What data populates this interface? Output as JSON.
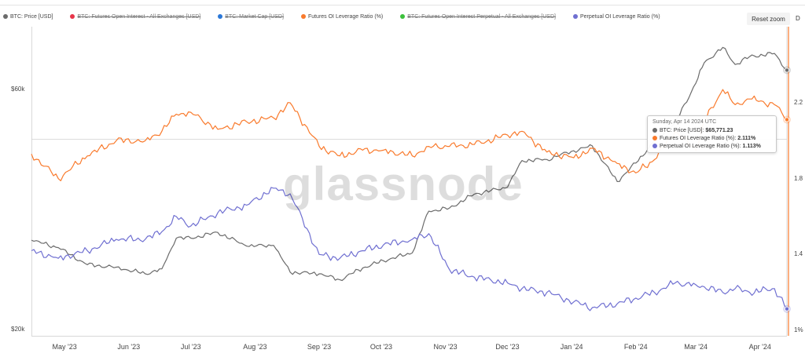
{
  "legend": [
    {
      "label": "BTC: Price [USD]",
      "color": "#6b6b6b",
      "hidden": false
    },
    {
      "label": "BTC: Futures Open Interest - All Exchanges [USD]",
      "color": "#e8354a",
      "hidden": true
    },
    {
      "label": "BTC: Market Cap [USD]",
      "color": "#2b78d8",
      "hidden": true
    },
    {
      "label": "Futures OI Leverage Ratio (%)",
      "color": "#f97a2c",
      "hidden": false
    },
    {
      "label": "BTC: Futures Open Interest Perpetual - All Exchanges [USD]",
      "color": "#3cc13c",
      "hidden": true
    },
    {
      "label": "Perpetual OI Leverage Ratio (%)",
      "color": "#6f6fd1",
      "hidden": false
    }
  ],
  "toolbar": {
    "reset_zoom_label": "Reset zoom",
    "cut_label": "D"
  },
  "watermark": "glassnode",
  "tooltip": {
    "date": "Sunday, Apr 14 2024 UTC",
    "rows": [
      {
        "label": "BTC: Price [USD]:",
        "value": "$65,771.23",
        "color": "#6b6b6b"
      },
      {
        "label": "Futures OI Leverage Ratio (%):",
        "value": "2.111%",
        "color": "#f97a2c"
      },
      {
        "label": "Perpetual OI Leverage Ratio (%):",
        "value": "1.113%",
        "color": "#6f6fd1"
      }
    ]
  },
  "chart_data": {
    "type": "line",
    "x_start": "2023-04-15",
    "x_end": "2024-04-14",
    "x_ticks": [
      "May '23",
      "Jun '23",
      "Jul '23",
      "Aug '23",
      "Sep '23",
      "Oct '23",
      "Nov '23",
      "Dec '23",
      "Jan '24",
      "Feb '24",
      "Mar '24",
      "Apr '24"
    ],
    "y_left": {
      "ticks": [
        "$20k",
        "$60k"
      ],
      "tick_values": [
        20000,
        60000
      ],
      "scale": "log",
      "range": [
        20000,
        74000
      ]
    },
    "y_right": {
      "ticks": [
        "1%",
        "1.4",
        "1.8",
        "2.2"
      ],
      "tick_values": [
        1.0,
        1.4,
        1.8,
        2.2
      ],
      "range": [
        1.0,
        2.3
      ]
    },
    "crosshair_date": "2024-04-14",
    "series": [
      {
        "name": "BTC: Price [USD]",
        "axis": "left",
        "color": "#6b6b6b",
        "x": [
          "2023-04-15",
          "2023-04-28",
          "2023-05-12",
          "2023-05-26",
          "2023-06-09",
          "2023-06-17",
          "2023-06-24",
          "2023-07-01",
          "2023-07-14",
          "2023-07-28",
          "2023-08-10",
          "2023-08-18",
          "2023-09-01",
          "2023-09-11",
          "2023-09-22",
          "2023-10-02",
          "2023-10-16",
          "2023-10-24",
          "2023-11-03",
          "2023-11-15",
          "2023-12-01",
          "2023-12-08",
          "2023-12-20",
          "2024-01-02",
          "2024-01-11",
          "2024-01-23",
          "2024-02-01",
          "2024-02-10",
          "2024-02-20",
          "2024-03-01",
          "2024-03-05",
          "2024-03-14",
          "2024-03-20",
          "2024-03-27",
          "2024-04-08",
          "2024-04-14"
        ],
        "y": [
          30200,
          29200,
          27000,
          26700,
          25900,
          26500,
          30500,
          30500,
          31300,
          29400,
          29500,
          26100,
          25900,
          25200,
          26600,
          27500,
          28500,
          34500,
          35000,
          37300,
          38500,
          43500,
          43700,
          45500,
          46500,
          39500,
          43000,
          47500,
          51700,
          62000,
          68000,
          73000,
          67500,
          70000,
          71000,
          65771
        ]
      },
      {
        "name": "Futures OI Leverage Ratio (%)",
        "axis": "right",
        "color": "#f97a2c",
        "x": [
          "2023-04-15",
          "2023-04-28",
          "2023-05-12",
          "2023-05-26",
          "2023-06-09",
          "2023-06-17",
          "2023-06-24",
          "2023-07-01",
          "2023-07-14",
          "2023-07-28",
          "2023-08-10",
          "2023-08-18",
          "2023-09-01",
          "2023-09-11",
          "2023-09-22",
          "2023-10-02",
          "2023-10-16",
          "2023-10-24",
          "2023-11-03",
          "2023-11-15",
          "2023-12-01",
          "2023-12-08",
          "2023-12-20",
          "2024-01-02",
          "2024-01-11",
          "2024-01-23",
          "2024-02-01",
          "2024-02-10",
          "2024-02-20",
          "2024-03-01",
          "2024-03-05",
          "2024-03-14",
          "2024-03-20",
          "2024-03-27",
          "2024-04-08",
          "2024-04-14"
        ],
        "y": [
          1.93,
          1.8,
          1.92,
          2.0,
          2.0,
          2.05,
          2.14,
          2.15,
          2.06,
          2.1,
          2.12,
          2.2,
          1.97,
          1.92,
          1.95,
          1.95,
          1.92,
          1.97,
          1.97,
          1.98,
          2.03,
          2.05,
          1.94,
          1.91,
          1.96,
          1.88,
          1.83,
          1.9,
          2.05,
          1.95,
          2.1,
          2.27,
          2.19,
          2.22,
          2.19,
          2.111
        ]
      },
      {
        "name": "Perpetual OI Leverage Ratio (%)",
        "axis": "right",
        "color": "#6f6fd1",
        "x": [
          "2023-04-15",
          "2023-04-28",
          "2023-05-12",
          "2023-05-26",
          "2023-06-09",
          "2023-06-17",
          "2023-06-24",
          "2023-07-01",
          "2023-07-14",
          "2023-07-28",
          "2023-08-10",
          "2023-08-18",
          "2023-09-01",
          "2023-09-11",
          "2023-09-22",
          "2023-10-02",
          "2023-10-16",
          "2023-10-24",
          "2023-11-03",
          "2023-11-15",
          "2023-12-01",
          "2023-12-08",
          "2023-12-20",
          "2024-01-02",
          "2024-01-11",
          "2024-01-23",
          "2024-02-01",
          "2024-02-10",
          "2024-02-20",
          "2024-03-01",
          "2024-03-05",
          "2024-03-14",
          "2024-03-20",
          "2024-03-27",
          "2024-04-08",
          "2024-04-14"
        ],
        "y": [
          1.42,
          1.38,
          1.42,
          1.48,
          1.48,
          1.52,
          1.6,
          1.55,
          1.62,
          1.66,
          1.75,
          1.72,
          1.4,
          1.38,
          1.42,
          1.45,
          1.48,
          1.51,
          1.32,
          1.28,
          1.25,
          1.22,
          1.2,
          1.15,
          1.12,
          1.14,
          1.17,
          1.2,
          1.25,
          1.24,
          1.23,
          1.2,
          1.22,
          1.2,
          1.22,
          1.113
        ]
      }
    ]
  }
}
